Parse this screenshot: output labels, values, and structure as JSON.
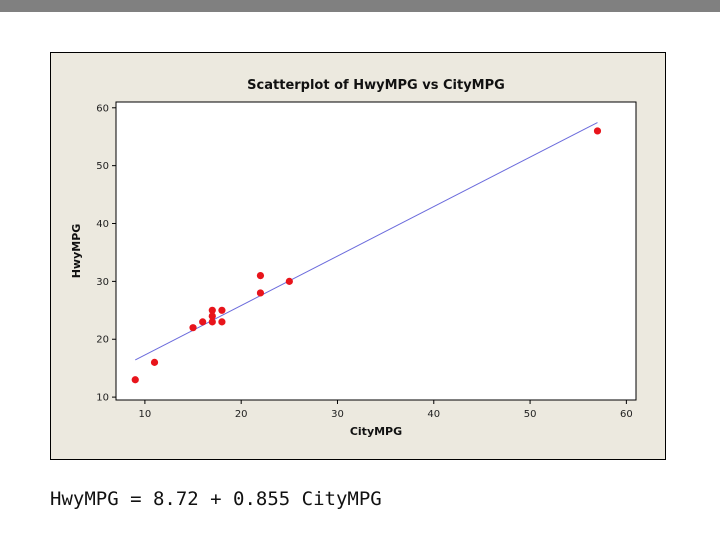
{
  "chart_data": {
    "type": "scatter",
    "title": "Scatterplot of HwyMPG vs CityMPG",
    "xlabel": "CityMPG",
    "ylabel": "HwyMPG",
    "xlim": [
      7,
      61
    ],
    "ylim": [
      9.5,
      61
    ],
    "xticks": [
      10,
      20,
      30,
      40,
      50,
      60
    ],
    "yticks": [
      10,
      20,
      30,
      40,
      50,
      60
    ],
    "grid": false,
    "series": [
      {
        "points": [
          {
            "x": 9,
            "y": 13
          },
          {
            "x": 11,
            "y": 16
          },
          {
            "x": 15,
            "y": 22
          },
          {
            "x": 16,
            "y": 23
          },
          {
            "x": 17,
            "y": 23
          },
          {
            "x": 17,
            "y": 24
          },
          {
            "x": 17,
            "y": 25
          },
          {
            "x": 18,
            "y": 23
          },
          {
            "x": 18,
            "y": 25
          },
          {
            "x": 22,
            "y": 28
          },
          {
            "x": 22,
            "y": 31
          },
          {
            "x": 25,
            "y": 30
          },
          {
            "x": 57,
            "y": 56
          }
        ],
        "color": "#e8141b"
      }
    ],
    "fit_line": {
      "intercept": 8.72,
      "slope": 0.855,
      "x_range": [
        9,
        57
      ],
      "color": "#6b6bdc"
    }
  },
  "equation": "HwyMPG = 8.72 + 0.855 CityMPG",
  "colors": {
    "frame_bg": "#ece9df",
    "plot_bg": "#ffffff",
    "top_bar": "#808080"
  }
}
